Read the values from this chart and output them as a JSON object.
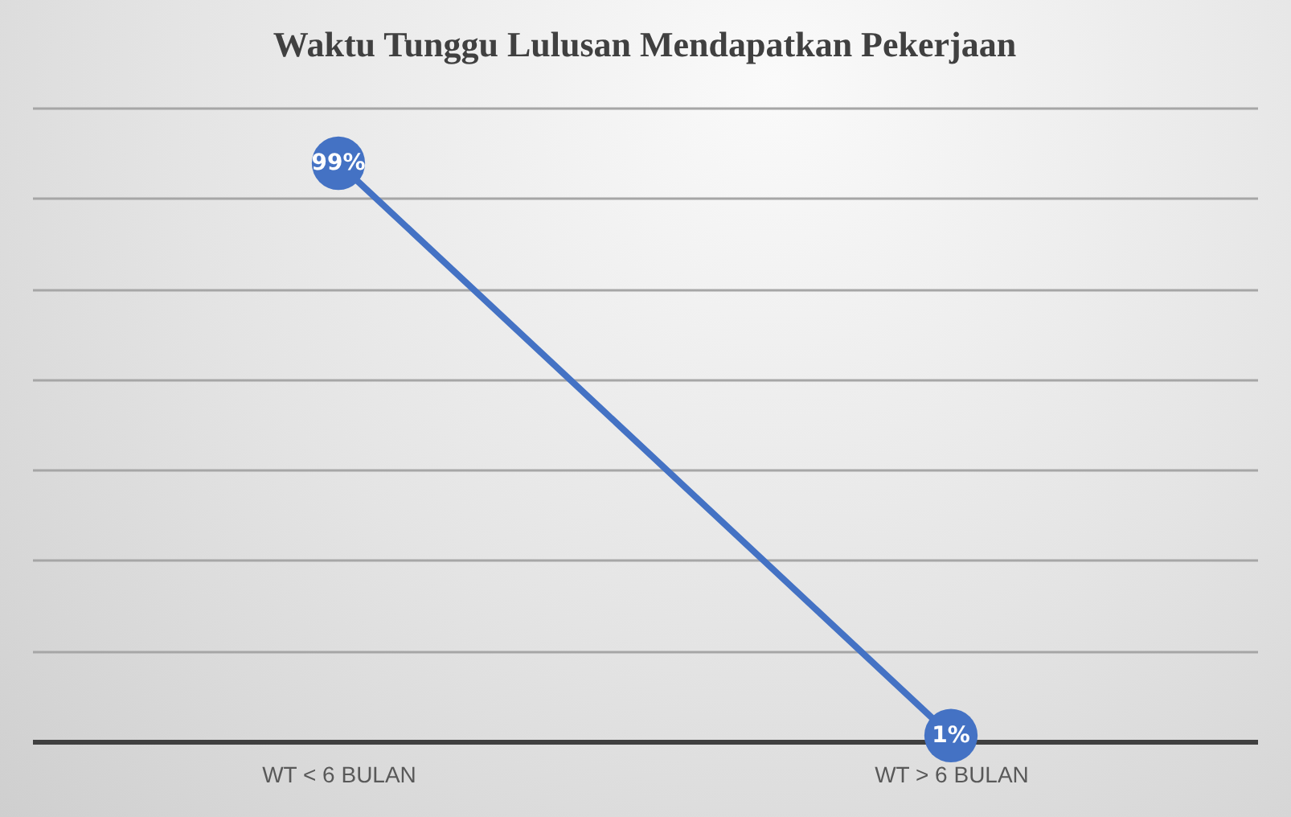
{
  "chart_data": {
    "type": "line",
    "title": "Waktu Tunggu Lulusan Mendapatkan Pekerjaan",
    "categories": [
      "WT < 6 BULAN",
      "WT > 6 BULAN"
    ],
    "series": [
      {
        "color": "#4472c4",
        "values": [
          99,
          1
        ],
        "value_labels": [
          "99%",
          "1%"
        ]
      }
    ],
    "ylim": [
      0,
      108.5
    ],
    "yticks": [
      {
        "value": 0,
        "label": null
      },
      {
        "value": 15.5,
        "label": null
      },
      {
        "value": 31,
        "label": null
      },
      {
        "value": 46.5,
        "label": null
      },
      {
        "value": 62,
        "label": null
      },
      {
        "value": 77.5,
        "label": null
      },
      {
        "value": 93,
        "label": null
      },
      {
        "value": 108.5,
        "label": null
      }
    ],
    "grid": "y",
    "marker": "circle",
    "line_style": "solid",
    "legend": false,
    "tick_labels": "x"
  }
}
